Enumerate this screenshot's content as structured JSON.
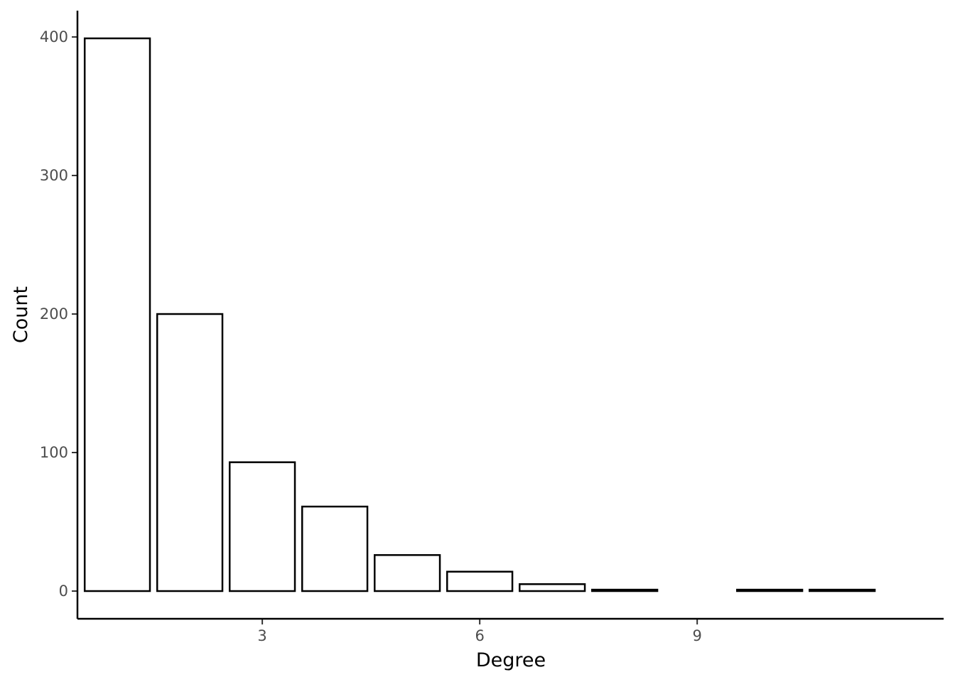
{
  "chart_data": {
    "type": "bar",
    "xlabel": "Degree",
    "ylabel": "Count",
    "x": [
      1,
      2,
      3,
      4,
      5,
      6,
      7,
      8,
      10,
      11
    ],
    "values": [
      399,
      200,
      93,
      61,
      26,
      14,
      5,
      1,
      1,
      1
    ],
    "xlim": [
      0.45,
      12.4
    ],
    "ylim": [
      -20,
      419
    ],
    "x_ticks": [
      3,
      6,
      9
    ],
    "y_ticks": [
      0,
      100,
      200,
      300,
      400
    ],
    "grid": false,
    "colors": {
      "bar_fill": "#ffffff",
      "bar_stroke": "#000000",
      "tick_text": "#4d4d4d"
    }
  }
}
